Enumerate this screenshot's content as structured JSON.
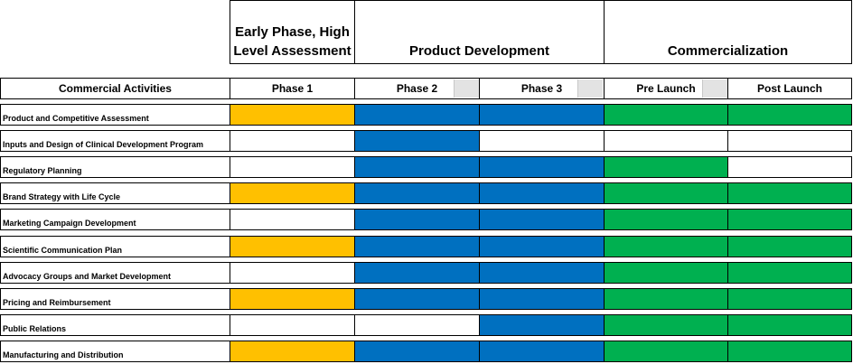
{
  "phase_groups": [
    {
      "label": "Early Phase, High Level Assessment"
    },
    {
      "label": "Product Development"
    },
    {
      "label": "Commercialization"
    }
  ],
  "columns": {
    "activities": "Commercial Activities",
    "phases": [
      "Phase 1",
      "Phase 2",
      "Phase 3",
      "Pre Launch",
      "Post Launch"
    ]
  },
  "colors": {
    "none": "#ffffff",
    "yellow": "#ffc000",
    "blue": "#0070c0",
    "green": "#00b050"
  },
  "rows": [
    {
      "label": "Product and Competitive Assessment",
      "cells": [
        "yellow",
        "blue",
        "blue",
        "green",
        "green"
      ]
    },
    {
      "label": "Inputs and Design of Clinical Development Program",
      "cells": [
        "none",
        "blue",
        "none",
        "none",
        "none"
      ]
    },
    {
      "label": "Regulatory Planning",
      "cells": [
        "none",
        "blue",
        "blue",
        "green",
        "none"
      ]
    },
    {
      "label": "Brand Strategy with Life Cycle",
      "cells": [
        "yellow",
        "blue",
        "blue",
        "green",
        "green"
      ]
    },
    {
      "label": "Marketing Campaign Development",
      "cells": [
        "none",
        "blue",
        "blue",
        "green",
        "green"
      ]
    },
    {
      "label": "Scientific Communication Plan",
      "cells": [
        "yellow",
        "blue",
        "blue",
        "green",
        "green"
      ]
    },
    {
      "label": "Advocacy Groups and Market Development",
      "cells": [
        "none",
        "blue",
        "blue",
        "green",
        "green"
      ]
    },
    {
      "label": "Pricing and Reimbursement",
      "cells": [
        "yellow",
        "blue",
        "blue",
        "green",
        "green"
      ]
    },
    {
      "label": "Public Relations",
      "cells": [
        "none",
        "none",
        "blue",
        "green",
        "green"
      ]
    },
    {
      "label": "Manufacturing and Distribution",
      "cells": [
        "yellow",
        "blue",
        "blue",
        "green",
        "green"
      ]
    }
  ]
}
